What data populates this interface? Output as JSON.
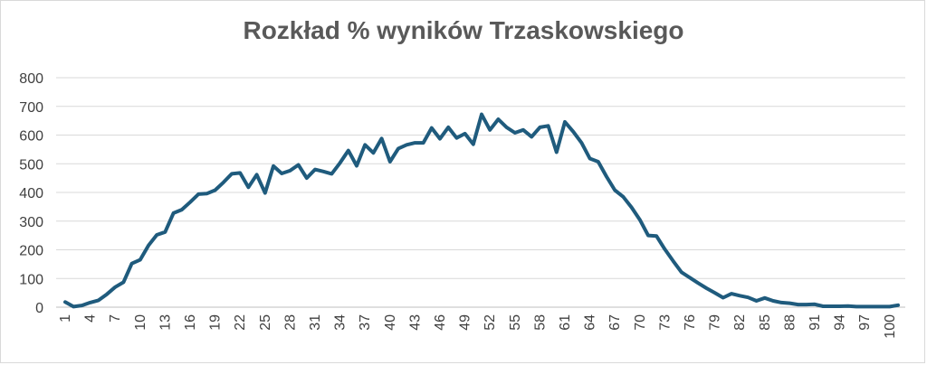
{
  "chart_data": {
    "type": "line",
    "title": "Rozkład % wyników Trzaskowskiego",
    "xlabel": "",
    "ylabel": "",
    "ylim": [
      0,
      800
    ],
    "y_ticks": [
      0,
      100,
      200,
      300,
      400,
      500,
      600,
      700,
      800
    ],
    "x_tick_labels": [
      "1",
      "4",
      "7",
      "10",
      "13",
      "16",
      "19",
      "22",
      "25",
      "28",
      "31",
      "34",
      "37",
      "40",
      "43",
      "46",
      "49",
      "52",
      "55",
      "58",
      "61",
      "64",
      "67",
      "70",
      "73",
      "76",
      "79",
      "82",
      "85",
      "88",
      "91",
      "94",
      "97",
      "100"
    ],
    "grid": true,
    "legend": "none",
    "colors": {
      "line": "#1f5b7d",
      "grid": "#d9d9d9",
      "axis": "#bfbfbf"
    },
    "x": [
      1,
      2,
      3,
      4,
      5,
      6,
      7,
      8,
      9,
      10,
      11,
      12,
      13,
      14,
      15,
      16,
      17,
      18,
      19,
      20,
      21,
      22,
      23,
      24,
      25,
      26,
      27,
      28,
      29,
      30,
      31,
      32,
      33,
      34,
      35,
      36,
      37,
      38,
      39,
      40,
      41,
      42,
      43,
      44,
      45,
      46,
      47,
      48,
      49,
      50,
      51,
      52,
      53,
      54,
      55,
      56,
      57,
      58,
      59,
      60,
      61,
      62,
      63,
      64,
      65,
      66,
      67,
      68,
      69,
      70,
      71,
      72,
      73,
      74,
      75,
      76,
      77,
      78,
      79,
      80,
      81,
      82,
      83,
      84,
      85,
      86,
      87,
      88,
      89,
      90,
      91,
      92,
      93,
      94,
      95,
      96,
      97,
      98,
      99,
      100,
      101
    ],
    "series": [
      {
        "values": [
          18,
          2,
          6,
          16,
          24,
          45,
          70,
          87,
          152,
          165,
          215,
          252,
          262,
          328,
          340,
          366,
          394,
          396,
          408,
          435,
          465,
          468,
          418,
          462,
          398,
          492,
          466,
          476,
          496,
          450,
          480,
          473,
          465,
          503,
          546,
          493,
          566,
          538,
          588,
          507,
          553,
          566,
          573,
          573,
          625,
          587,
          627,
          590,
          605,
          568,
          672,
          618,
          655,
          627,
          608,
          618,
          594,
          627,
          632,
          540,
          646,
          612,
          573,
          518,
          507,
          455,
          408,
          385,
          348,
          305,
          250,
          248,
          202,
          161,
          122,
          103,
          84,
          66,
          50,
          33,
          47,
          40,
          34,
          22,
          32,
          22,
          16,
          14,
          9,
          9,
          10,
          3,
          3,
          3,
          4,
          2,
          2,
          2,
          2,
          2,
          7
        ]
      }
    ]
  }
}
